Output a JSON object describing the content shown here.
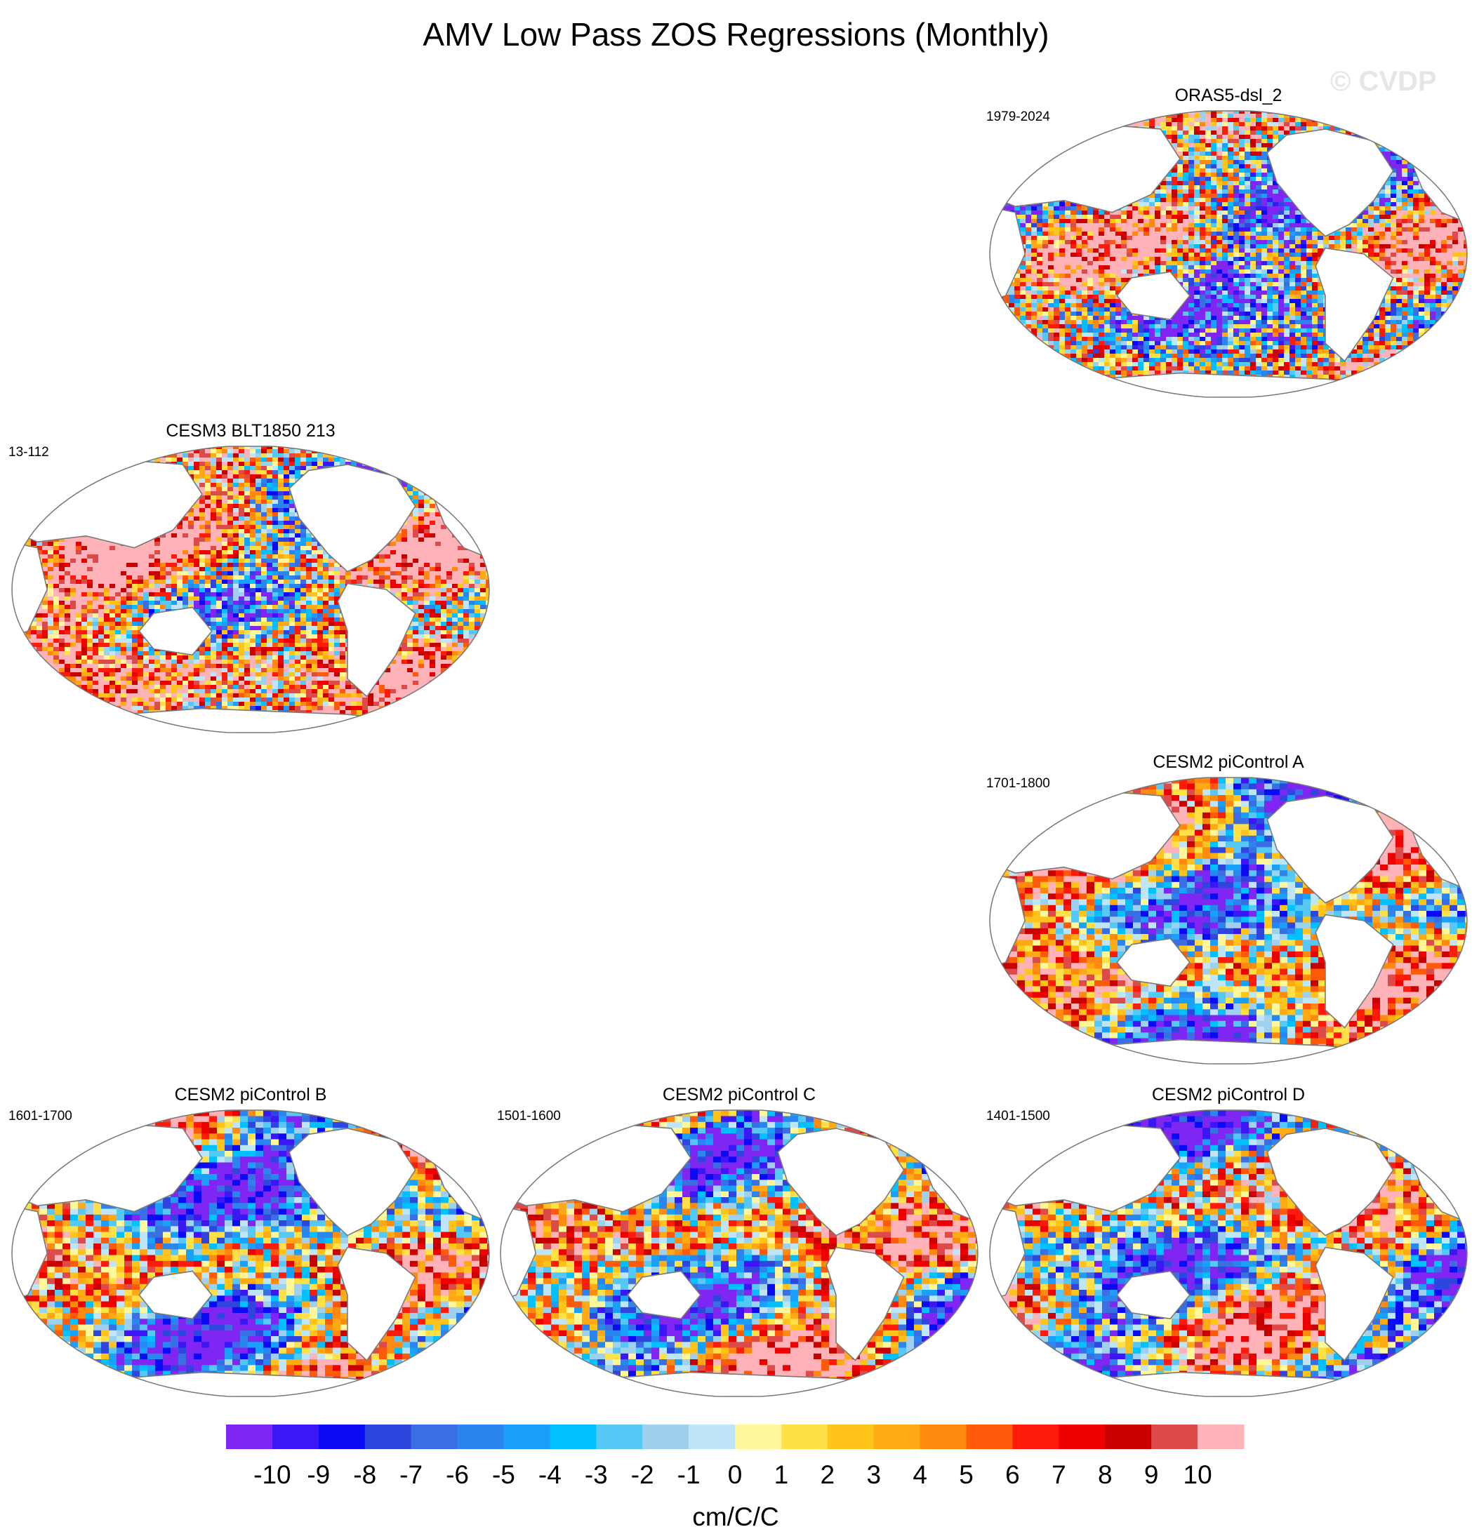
{
  "title": "AMV Low Pass ZOS Regressions (Monthly)",
  "watermark": "© CVDP",
  "chart_data": {
    "type": "heatmap",
    "title": "AMV Low Pass ZOS Regressions (Monthly)",
    "projection": "Robinson",
    "grid": false,
    "colorbar": {
      "placement": "bottom",
      "unit_label": "cm/C/C",
      "tick_labels": [
        "-10",
        "-9",
        "-8",
        "-7",
        "-6",
        "-5",
        "-4",
        "-3",
        "-2",
        "-1",
        "0",
        "1",
        "2",
        "3",
        "4",
        "5",
        "6",
        "7",
        "8",
        "9",
        "10"
      ],
      "levels": [
        -10,
        -9,
        -8,
        -7,
        -6,
        -5,
        -4,
        -3,
        -2,
        -1,
        0,
        1,
        2,
        3,
        4,
        5,
        6,
        7,
        8,
        9,
        10
      ],
      "colors": [
        "#7f26f2",
        "#3b17f5",
        "#0a0af5",
        "#2e46de",
        "#3a6fe3",
        "#2a86ee",
        "#1aa0fa",
        "#00c0ff",
        "#55c8f5",
        "#9fd0ee",
        "#bfe5f8",
        "#fff799",
        "#ffe047",
        "#ffc31a",
        "#ffaa14",
        "#ff8a0f",
        "#ff5a0a",
        "#ff1a0a",
        "#ee0000",
        "#c80000",
        "#dc4a4a",
        "#ffb3b8"
      ]
    },
    "panels": [
      {
        "name": "ORAS5-dsl_2",
        "period": "1979-2024"
      },
      {
        "name": "CESM3 BLT1850 213",
        "period": "13-112"
      },
      {
        "name": "CESM2 piControl A",
        "period": "1701-1800"
      },
      {
        "name": "CESM2 piControl B",
        "period": "1601-1700"
      },
      {
        "name": "CESM2 piControl C",
        "period": "1501-1600"
      },
      {
        "name": "CESM2 piControl D",
        "period": "1401-1500"
      }
    ]
  }
}
